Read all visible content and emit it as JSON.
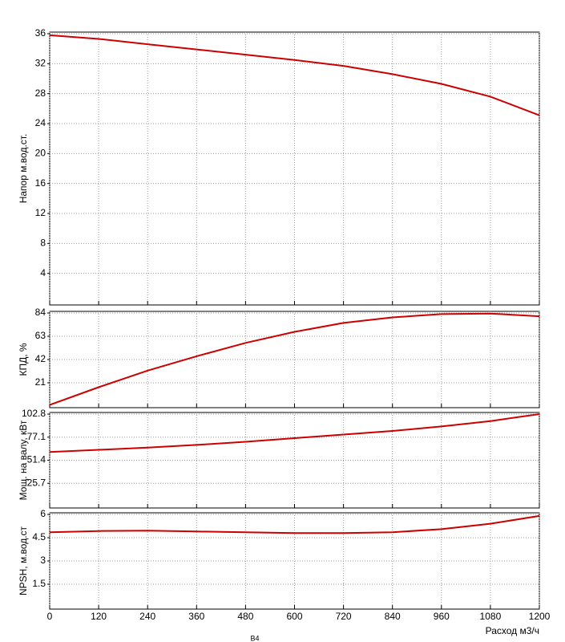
{
  "chart_data": [
    {
      "type": "line",
      "ylabel": "Напор м.вод.ст.",
      "x": [
        0,
        120,
        240,
        360,
        480,
        600,
        720,
        840,
        960,
        1080,
        1200
      ],
      "series": [
        {
          "color": "#cc0000",
          "values": [
            35.8,
            35.3,
            34.6,
            33.9,
            33.2,
            32.5,
            31.7,
            30.6,
            29.3,
            27.6,
            25.1
          ]
        }
      ],
      "xlim": [
        0,
        1200
      ],
      "xticks": [
        0,
        120,
        240,
        360,
        480,
        600,
        720,
        840,
        960,
        1080,
        1200
      ],
      "ylim": [
        0,
        36
      ],
      "yticks": [
        4,
        8,
        12,
        16,
        20,
        24,
        28,
        32,
        36
      ],
      "grid": true
    },
    {
      "type": "line",
      "ylabel": "КПД, %",
      "x": [
        0,
        120,
        240,
        360,
        480,
        600,
        720,
        840,
        960,
        1080,
        1200
      ],
      "series": [
        {
          "color": "#cc0000",
          "values": [
            1,
            17,
            32,
            45,
            57,
            67,
            75,
            80,
            83,
            83.5,
            81
          ]
        }
      ],
      "xlim": [
        0,
        1200
      ],
      "xticks": [
        0,
        120,
        240,
        360,
        480,
        600,
        720,
        840,
        960,
        1080,
        1200
      ],
      "ylim": [
        0,
        84
      ],
      "yticks": [
        21,
        42,
        63,
        84
      ],
      "grid": true
    },
    {
      "type": "line",
      "ylabel": "Мощ. на валу, кВт",
      "x": [
        0,
        120,
        240,
        360,
        480,
        600,
        720,
        840,
        960,
        1080,
        1200
      ],
      "series": [
        {
          "color": "#cc0000",
          "values": [
            60.5,
            63,
            65.5,
            68.5,
            72,
            76,
            80,
            84,
            89,
            95,
            102.8
          ]
        }
      ],
      "xlim": [
        0,
        1200
      ],
      "xticks": [
        0,
        120,
        240,
        360,
        480,
        600,
        720,
        840,
        960,
        1080,
        1200
      ],
      "ylim": [
        0,
        102.8
      ],
      "yticks": [
        25.7,
        51.4,
        77.1,
        102.8
      ],
      "grid": true
    },
    {
      "type": "line",
      "ylabel": "NPSH, м.вод.ст",
      "xlabel": "Расход м3/ч",
      "annotation": "В4",
      "x": [
        0,
        120,
        240,
        360,
        480,
        600,
        720,
        840,
        960,
        1080,
        1200
      ],
      "series": [
        {
          "color": "#cc0000",
          "values": [
            4.85,
            4.93,
            4.95,
            4.9,
            4.85,
            4.8,
            4.8,
            4.85,
            5.05,
            5.4,
            5.9
          ]
        }
      ],
      "xlim": [
        0,
        1200
      ],
      "xticks": [
        0,
        120,
        240,
        360,
        480,
        600,
        720,
        840,
        960,
        1080,
        1200
      ],
      "ylim": [
        0,
        6
      ],
      "yticks": [
        1.5,
        3,
        4.5,
        6
      ],
      "grid": true,
      "show_xtick_labels": true
    }
  ]
}
